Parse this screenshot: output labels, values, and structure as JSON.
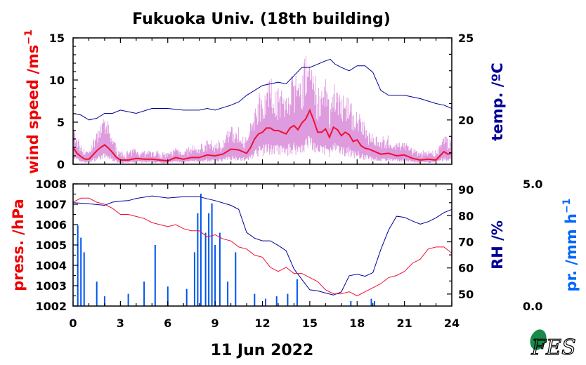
{
  "chart_data": [
    {
      "type": "line",
      "title": "Fukuoka Univ. (18th building)",
      "x_unit": "hour",
      "xlim": [
        0,
        24
      ],
      "x_ticks": [
        "0",
        "3",
        "6",
        "9",
        "12",
        "15",
        "18",
        "21",
        "24"
      ],
      "left_axis": {
        "label": "wind speed /ms⁻¹",
        "label_main": "wind speed /ms",
        "label_sup": "−1",
        "ylim": [
          0,
          15
        ],
        "ticks": [
          "15",
          "10",
          "5",
          "0"
        ],
        "color": "#ee0000"
      },
      "right_axis": {
        "label": "temp. /ºC",
        "ylim": [
          17.3,
          25
        ],
        "ticks": [
          "25",
          "20"
        ],
        "color": "#000099"
      },
      "series": [
        {
          "axis": "left",
          "color": "#ee1133",
          "x": [
            0,
            0.25,
            0.5,
            0.75,
            1,
            1.5,
            1.75,
            2,
            2.25,
            2.5,
            2.75,
            3,
            3.5,
            4,
            4.5,
            5,
            5.5,
            6,
            6.5,
            7,
            7.5,
            8,
            8.5,
            9,
            9.5,
            10,
            10.5,
            11,
            11.25,
            11.5,
            11.75,
            12,
            12.25,
            12.5,
            12.75,
            13,
            13.25,
            13.5,
            13.75,
            14,
            14.25,
            14.5,
            14.75,
            15,
            15.25,
            15.5,
            15.75,
            16,
            16.25,
            16.5,
            16.75,
            17,
            17.25,
            17.5,
            17.75,
            18,
            18.25,
            18.5,
            18.75,
            19,
            19.5,
            20,
            20.5,
            21,
            21.5,
            22,
            22.5,
            23,
            23.25,
            23.5,
            23.75,
            24
          ],
          "y": [
            2.0,
            1.3,
            0.9,
            0.6,
            0.6,
            1.6,
            2.0,
            2.3,
            1.9,
            1.4,
            0.8,
            0.5,
            0.5,
            0.7,
            0.6,
            0.6,
            0.5,
            0.4,
            0.8,
            0.6,
            0.8,
            0.8,
            1.1,
            1.0,
            1.2,
            1.8,
            1.7,
            1.3,
            2.0,
            3.0,
            3.6,
            3.8,
            4.3,
            4.3,
            4.0,
            4.0,
            3.8,
            3.6,
            4.3,
            4.6,
            4.1,
            4.9,
            5.4,
            6.4,
            5.2,
            3.8,
            3.8,
            4.2,
            3.2,
            4.4,
            4.1,
            3.4,
            3.8,
            3.5,
            2.7,
            2.9,
            2.2,
            1.9,
            1.8,
            1.6,
            1.2,
            1.3,
            1.0,
            1.1,
            0.7,
            0.5,
            0.6,
            0.5,
            1.0,
            1.5,
            1.2,
            1.3
          ]
        },
        {
          "axis": "right",
          "color": "#000099",
          "x": [
            0,
            0.5,
            1,
            1.5,
            2,
            2.5,
            3,
            4,
            5,
            6,
            7,
            8,
            8.5,
            9,
            10,
            10.5,
            11,
            11.5,
            12,
            12.5,
            13,
            13.5,
            14,
            14.5,
            15,
            15.5,
            16,
            16.3,
            16.6,
            17,
            17.5,
            18,
            18.5,
            19,
            19.5,
            20,
            21,
            22,
            23,
            23.5,
            24
          ],
          "y": [
            20.4,
            20.3,
            20.0,
            20.1,
            20.4,
            20.4,
            20.6,
            20.4,
            20.7,
            20.7,
            20.6,
            20.6,
            20.7,
            20.6,
            20.9,
            21.1,
            21.5,
            21.8,
            22.1,
            22.2,
            22.3,
            22.2,
            22.7,
            23.2,
            23.2,
            23.4,
            23.6,
            23.7,
            23.4,
            23.2,
            23.0,
            23.3,
            23.3,
            22.9,
            21.8,
            21.5,
            21.5,
            21.3,
            21.0,
            20.9,
            20.7
          ]
        }
      ]
    },
    {
      "type": "line",
      "xlim": [
        0,
        24
      ],
      "x_ticks": [
        "0",
        "3",
        "6",
        "9",
        "12",
        "15",
        "18",
        "21",
        "24"
      ],
      "left_axis": {
        "label": "press. /hPa",
        "ylim": [
          1002,
          1008
        ],
        "ticks": [
          "1008",
          "1007",
          "1006",
          "1005",
          "1004",
          "1003",
          "1002"
        ],
        "color": "#ee0000"
      },
      "right_axis": {
        "label": "RH /%",
        "ylim": [
          45.4,
          92.2
        ],
        "ticks": [
          "90",
          "80",
          "70",
          "60",
          "50"
        ],
        "color": "#000099"
      },
      "far_right_axis": {
        "label": "pr. /mm h⁻¹",
        "label_main": "pr. /mm h",
        "label_sup": "−1",
        "ylim": [
          0,
          5
        ],
        "ticks": [
          "5.0",
          "0.0"
        ],
        "color": "#0066ff"
      },
      "series": [
        {
          "axis": "left",
          "color": "#ee1133",
          "x": [
            0,
            0.5,
            1,
            1.5,
            2,
            2.5,
            3,
            3.5,
            4,
            4.5,
            5,
            5.5,
            6,
            6.5,
            7,
            7.5,
            8,
            8.5,
            9,
            9.5,
            10,
            10.5,
            11,
            11.5,
            12,
            12.5,
            13,
            13.5,
            14,
            14.5,
            15,
            15.5,
            16,
            16.5,
            17,
            17.5,
            18,
            18.5,
            19,
            19.5,
            20,
            20.5,
            21,
            21.5,
            22,
            22.5,
            23,
            23.5,
            24
          ],
          "y": [
            1007.1,
            1007.3,
            1007.3,
            1007.1,
            1007.0,
            1006.8,
            1006.5,
            1006.5,
            1006.4,
            1006.3,
            1006.1,
            1006.0,
            1005.9,
            1006.0,
            1005.8,
            1005.7,
            1005.7,
            1005.4,
            1005.5,
            1005.3,
            1005.2,
            1004.9,
            1004.8,
            1004.5,
            1004.4,
            1003.9,
            1003.7,
            1003.9,
            1003.6,
            1003.6,
            1003.4,
            1003.2,
            1002.8,
            1002.6,
            1002.6,
            1002.7,
            1002.5,
            1002.7,
            1002.9,
            1003.1,
            1003.4,
            1003.5,
            1003.7,
            1004.1,
            1004.3,
            1004.8,
            1004.9,
            1004.9,
            1004.6
          ]
        },
        {
          "axis": "right",
          "color": "#000099",
          "x": [
            0,
            1,
            2,
            2.5,
            3,
            3.5,
            4,
            5,
            6,
            7,
            8,
            8.5,
            9,
            10,
            10.5,
            11,
            11.5,
            12,
            12.5,
            13,
            13.5,
            14,
            14.5,
            15,
            15.5,
            16,
            16.5,
            17,
            17.5,
            18,
            18.5,
            19,
            19.5,
            20,
            20.5,
            21,
            21.5,
            22,
            22.5,
            23,
            23.5,
            24
          ],
          "y": [
            85.0,
            84.6,
            84.0,
            85.2,
            85.6,
            85.8,
            86.6,
            87.6,
            86.8,
            87.3,
            87.3,
            86.5,
            85.8,
            84.0,
            82.4,
            73.6,
            71.4,
            70.4,
            70.4,
            68.6,
            66.6,
            59.6,
            55.6,
            51.6,
            51.2,
            50.4,
            49.6,
            50.8,
            57.0,
            57.6,
            56.8,
            58.2,
            67.0,
            74.6,
            79.8,
            79.4,
            78.0,
            76.8,
            77.7,
            79.2,
            81.2,
            82.4
          ]
        },
        {
          "axis": "far_right",
          "color": "#0055ee",
          "style": "bars",
          "x": [
            0.3,
            0.5,
            0.7,
            1.5,
            2.0,
            3.5,
            4.5,
            5.2,
            6.0,
            7.2,
            7.7,
            7.9,
            8.1,
            8.4,
            8.6,
            8.8,
            9.0,
            9.3,
            9.8,
            10.3,
            11.5,
            12.2,
            12.9,
            13.6,
            14.2,
            17.6,
            18.9,
            19.1
          ],
          "y": [
            3.3,
            2.8,
            2.2,
            1.0,
            0.4,
            0.5,
            1.0,
            2.5,
            0.8,
            0.7,
            2.2,
            3.8,
            4.6,
            3.0,
            3.8,
            4.2,
            2.5,
            3.0,
            1.0,
            2.2,
            0.5,
            0.3,
            0.4,
            0.5,
            1.1,
            0.2,
            0.3,
            0.2
          ]
        }
      ]
    }
  ],
  "date_label": "11 Jun 2022",
  "logo": {
    "text": "FES"
  }
}
